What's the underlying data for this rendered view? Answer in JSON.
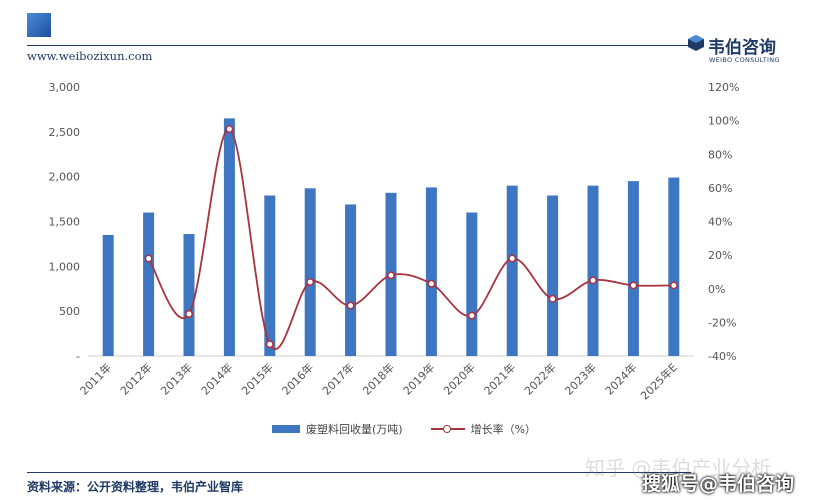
{
  "header": {
    "website": "www.weibozixun.com",
    "brand_name": "韦伯咨询",
    "brand_sub": "WEIBO CONSULTING"
  },
  "chart_data": {
    "type": "bar+line",
    "categories": [
      "2011年",
      "2012年",
      "2013年",
      "2014年",
      "2015年",
      "2016年",
      "2017年",
      "2018年",
      "2019年",
      "2020年",
      "2021年",
      "2022年",
      "2023年",
      "2024年",
      "2025年E"
    ],
    "series": [
      {
        "name": "废塑料回收量(万吨)",
        "type": "bar",
        "axis": "left",
        "color": "#3f76c2",
        "values": [
          1350,
          1600,
          1360,
          2650,
          1790,
          1870,
          1690,
          1820,
          1880,
          1600,
          1900,
          1790,
          1900,
          1950,
          1990
        ]
      },
      {
        "name": "增长率（%）",
        "type": "line",
        "axis": "right",
        "color": "#a8333f",
        "values": [
          null,
          18,
          -15,
          95,
          -33,
          4,
          -10,
          8,
          3,
          -16,
          18,
          -6,
          5,
          2,
          2
        ]
      }
    ],
    "left_axis": {
      "min": 0,
      "max": 3000,
      "ticks": [
        0,
        500,
        1000,
        1500,
        2000,
        2500,
        3000
      ],
      "tick_labels": [
        "-",
        "500",
        "1,000",
        "1,500",
        "2,000",
        "2,500",
        "3,000"
      ]
    },
    "right_axis": {
      "min": -40,
      "max": 120,
      "ticks": [
        -40,
        -20,
        0,
        20,
        40,
        60,
        80,
        100,
        120
      ],
      "tick_labels": [
        "-40%",
        "-20%",
        "0%",
        "20%",
        "40%",
        "60%",
        "80%",
        "100%",
        "120%"
      ]
    },
    "legend": [
      "废塑料回收量(万吨)",
      "增长率（%）"
    ],
    "legend_position": "bottom"
  },
  "footer": {
    "source": "资料来源：公开资料整理，韦伯产业智库",
    "watermark": "知乎 @韦伯产业分析",
    "watermark_user": "搜狐号@韦伯咨询"
  }
}
